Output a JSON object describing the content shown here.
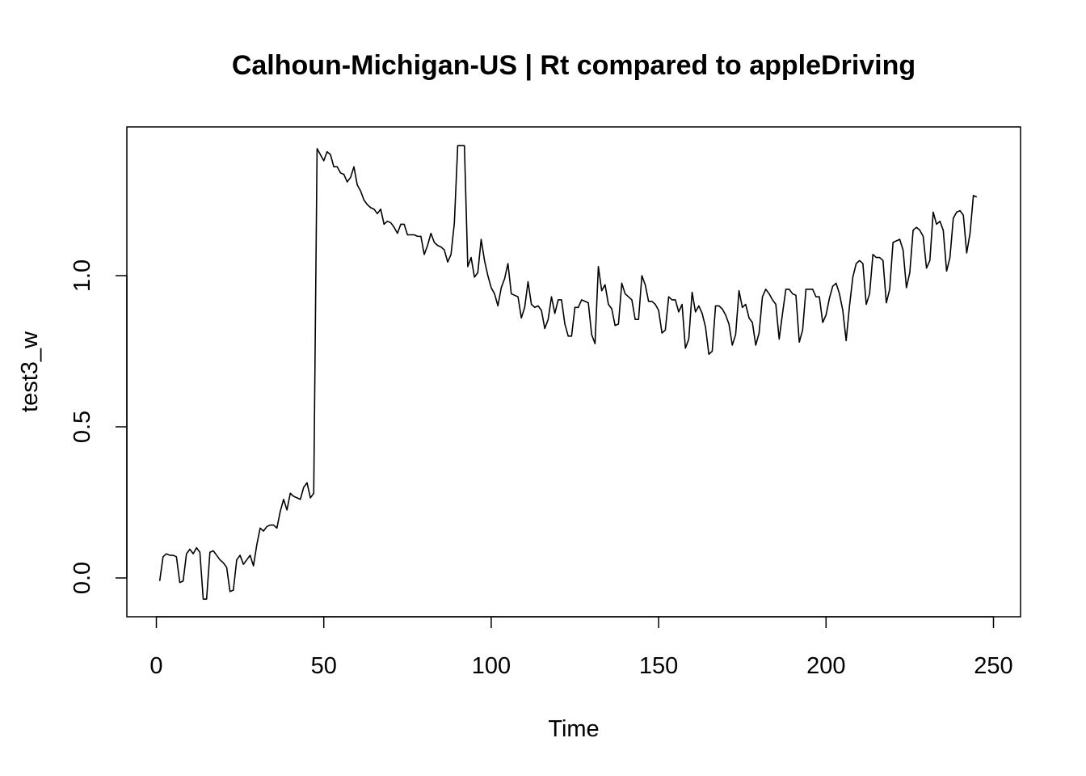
{
  "chart_data": {
    "type": "line",
    "title": "Calhoun-Michigan-US | Rt compared to appleDriving",
    "xlabel": "Time",
    "ylabel": "test3_w",
    "xlim": [
      0,
      250
    ],
    "ylim": [
      -0.05,
      1.45
    ],
    "x_ticks": [
      0,
      50,
      100,
      150,
      200,
      250
    ],
    "y_ticks": [
      0.0,
      0.5,
      1.0
    ],
    "x_tick_labels": [
      "0",
      "50",
      "100",
      "150",
      "200",
      "250"
    ],
    "y_tick_labels": [
      "0.0",
      "0.5",
      "1.0"
    ],
    "grid": false,
    "line_color": "#000000",
    "series": [
      {
        "x_start": 1,
        "x_step": 1,
        "values": [
          -0.01,
          0.07,
          0.08,
          0.075,
          0.075,
          0.07,
          -0.015,
          -0.01,
          0.08,
          0.095,
          0.08,
          0.1,
          0.085,
          -0.07,
          -0.07,
          0.085,
          0.09,
          0.075,
          0.06,
          0.05,
          0.035,
          -0.045,
          -0.04,
          0.06,
          0.075,
          0.045,
          0.06,
          0.075,
          0.04,
          0.11,
          0.165,
          0.155,
          0.17,
          0.175,
          0.175,
          0.165,
          0.22,
          0.26,
          0.225,
          0.28,
          0.27,
          0.265,
          0.26,
          0.3,
          0.315,
          0.265,
          0.28,
          1.42,
          1.4,
          1.38,
          1.41,
          1.4,
          1.36,
          1.36,
          1.34,
          1.335,
          1.31,
          1.325,
          1.36,
          1.3,
          1.28,
          1.25,
          1.235,
          1.225,
          1.22,
          1.205,
          1.22,
          1.17,
          1.18,
          1.175,
          1.16,
          1.14,
          1.17,
          1.17,
          1.135,
          1.135,
          1.135,
          1.13,
          1.13,
          1.07,
          1.1,
          1.14,
          1.11,
          1.1,
          1.095,
          1.085,
          1.045,
          1.07,
          1.175,
          1.43,
          1.43,
          1.43,
          1.03,
          1.06,
          0.995,
          1.01,
          1.12,
          1.05,
          1.0,
          0.96,
          0.94,
          0.9,
          0.96,
          0.99,
          1.04,
          0.94,
          0.935,
          0.93,
          0.86,
          0.895,
          0.98,
          0.905,
          0.895,
          0.9,
          0.885,
          0.825,
          0.855,
          0.93,
          0.875,
          0.92,
          0.92,
          0.84,
          0.8,
          0.8,
          0.895,
          0.895,
          0.92,
          0.915,
          0.91,
          0.805,
          0.775,
          1.03,
          0.95,
          0.97,
          0.905,
          0.89,
          0.835,
          0.84,
          0.975,
          0.94,
          0.93,
          0.92,
          0.855,
          0.855,
          1.0,
          0.97,
          0.915,
          0.915,
          0.905,
          0.885,
          0.81,
          0.82,
          0.93,
          0.92,
          0.92,
          0.88,
          0.905,
          0.76,
          0.79,
          0.945,
          0.88,
          0.9,
          0.875,
          0.83,
          0.74,
          0.75,
          0.9,
          0.9,
          0.89,
          0.87,
          0.84,
          0.77,
          0.805,
          0.95,
          0.895,
          0.905,
          0.86,
          0.845,
          0.77,
          0.81,
          0.93,
          0.955,
          0.94,
          0.92,
          0.905,
          0.79,
          0.875,
          0.955,
          0.955,
          0.94,
          0.935,
          0.78,
          0.82,
          0.955,
          0.955,
          0.955,
          0.93,
          0.93,
          0.845,
          0.87,
          0.925,
          0.965,
          0.975,
          0.94,
          0.885,
          0.785,
          0.9,
          0.995,
          1.04,
          1.05,
          1.04,
          0.905,
          0.94,
          1.07,
          1.06,
          1.06,
          1.05,
          0.91,
          0.955,
          1.11,
          1.115,
          1.12,
          1.085,
          0.96,
          1.01,
          1.15,
          1.16,
          1.15,
          1.13,
          1.025,
          1.05,
          1.21,
          1.17,
          1.18,
          1.15,
          1.015,
          1.06,
          1.19,
          1.21,
          1.215,
          1.2,
          1.075,
          1.14,
          1.265,
          1.26
        ]
      }
    ]
  }
}
